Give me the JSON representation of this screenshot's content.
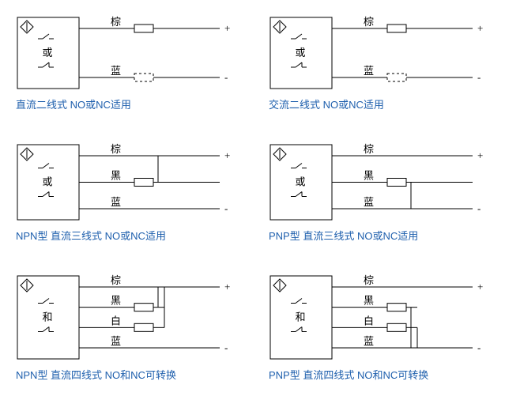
{
  "colors": {
    "caption": "#1e5fad",
    "line": "#000000",
    "bg": "#ffffff"
  },
  "labels": {
    "brown": "棕",
    "black": "黑",
    "white": "白",
    "blue": "蓝",
    "or": "或",
    "and": "和",
    "plus": "+",
    "minus": "-"
  },
  "diagrams": [
    {
      "key": "dc2",
      "caption": "直流二线式 NO或NC适用",
      "mid_label": "or",
      "wires": [
        "brown",
        "blue"
      ],
      "solid_load_on": "brown",
      "dashed_load_on": "blue",
      "join_right": false
    },
    {
      "key": "ac2",
      "caption": "交流二线式 NO或NC适用",
      "mid_label": "or",
      "wires": [
        "brown",
        "blue"
      ],
      "solid_load_on": "brown",
      "dashed_load_on": "blue",
      "join_right": false
    },
    {
      "key": "npn3",
      "caption": "NPN型 直流三线式 NO或NC适用",
      "mid_label": "or",
      "wires": [
        "brown",
        "black",
        "blue"
      ],
      "solid_load_on": "black",
      "vertical_link": [
        "brown",
        "black"
      ],
      "join_right": false
    },
    {
      "key": "pnp3",
      "caption": "PNP型 直流三线式 NO或NC适用",
      "mid_label": "or",
      "wires": [
        "brown",
        "black",
        "blue"
      ],
      "solid_load_on": "black",
      "vertical_link": [
        "black",
        "blue"
      ],
      "join_right": false
    },
    {
      "key": "npn4",
      "caption": "NPN型 直流四线式 NO和NC可转换",
      "mid_label": "and",
      "wires": [
        "brown",
        "black",
        "white",
        "blue"
      ],
      "solid_load_on": "black",
      "solid_load_on2": "white",
      "vertical_link": [
        "brown",
        "black"
      ],
      "vertical_link2": [
        "brown",
        "white"
      ],
      "join_right": true
    },
    {
      "key": "pnp4",
      "caption": "PNP型 直流四线式 NO和NC可转换",
      "mid_label": "and",
      "wires": [
        "brown",
        "black",
        "white",
        "blue"
      ],
      "solid_load_on": "black",
      "solid_load_on2": "white",
      "vertical_link": [
        "black",
        "blue"
      ],
      "vertical_link2": [
        "white",
        "blue"
      ],
      "join_right": true
    }
  ]
}
